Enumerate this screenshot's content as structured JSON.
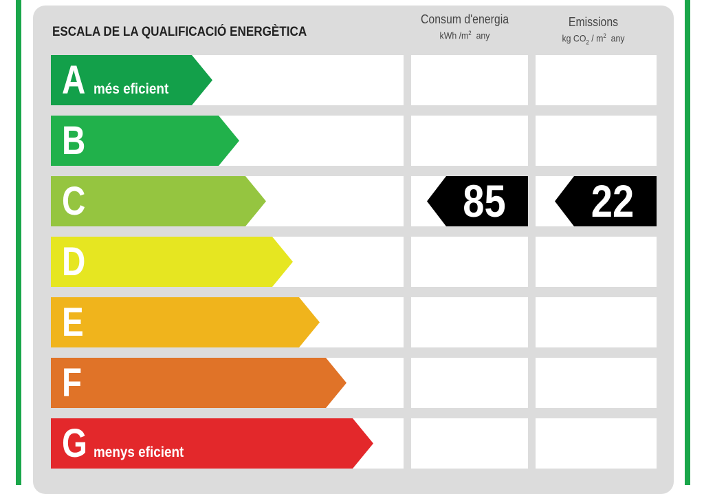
{
  "title": "ESCALA DE LA QUALIFICACIÓ ENERGÈTICA",
  "columns": {
    "energy": {
      "label": "Consum d'energia",
      "unit_pre": "kWh /m",
      "unit_sup": "2",
      "unit_post": "  any"
    },
    "emissions": {
      "label": "Emissions",
      "unit_pre": "kg CO",
      "unit_sub": "2",
      "unit_mid": " / m",
      "unit_sup": "2",
      "unit_post": "  any"
    }
  },
  "ratings": [
    {
      "letter": "A",
      "desc": "més eficient",
      "color": "#13a04a"
    },
    {
      "letter": "B",
      "desc": "",
      "color": "#21b14b"
    },
    {
      "letter": "C",
      "desc": "",
      "color": "#95c540"
    },
    {
      "letter": "D",
      "desc": "",
      "color": "#e6e621"
    },
    {
      "letter": "E",
      "desc": "",
      "color": "#f0b41c"
    },
    {
      "letter": "F",
      "desc": "",
      "color": "#e07328"
    },
    {
      "letter": "G",
      "desc": "menys eficient",
      "color": "#e3282b"
    }
  ],
  "result": {
    "rating": "C",
    "energy_value": "85",
    "emissions_value": "22",
    "tag_color": "#000000"
  }
}
